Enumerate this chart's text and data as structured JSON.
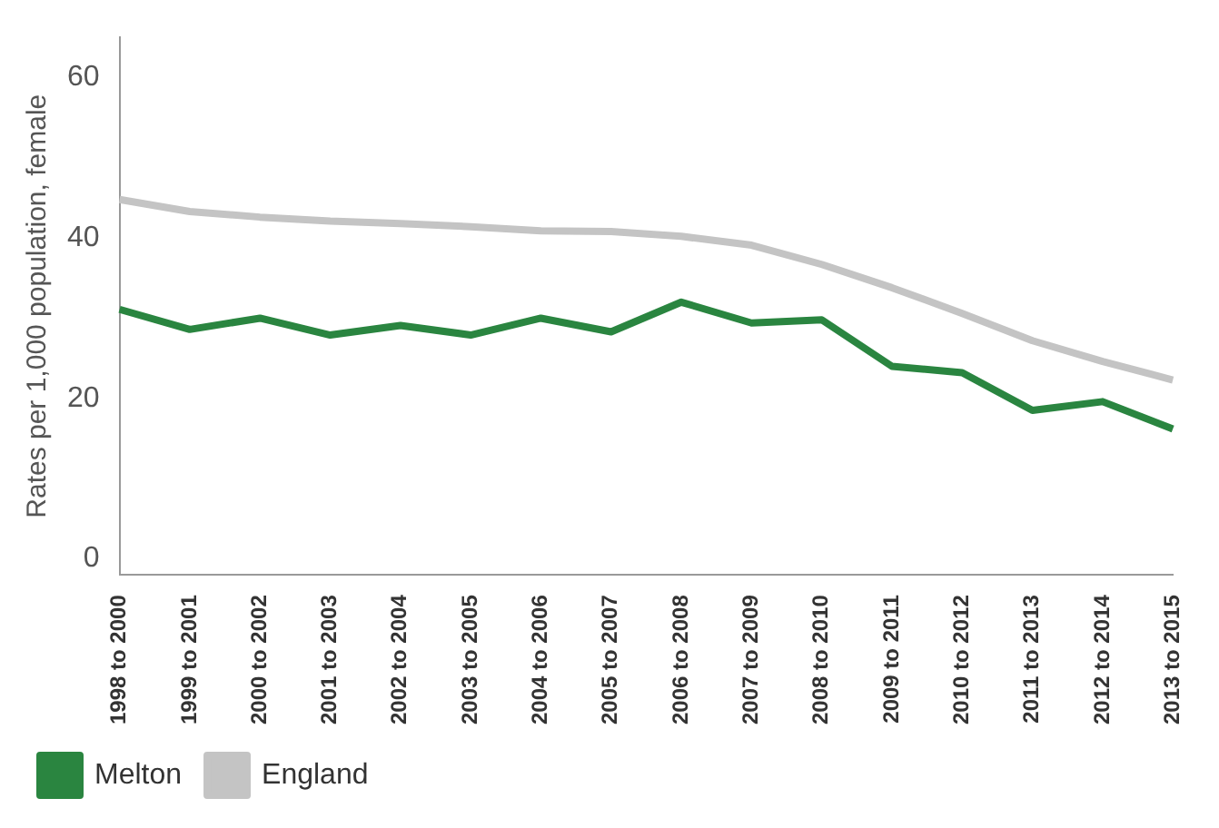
{
  "chart_data": {
    "type": "line",
    "ylabel": "Rates per 1,000 population, female",
    "categories": [
      "1998 to 2000",
      "1999 to 2001",
      "2000 to 2002",
      "2001 to 2003",
      "2002 to 2004",
      "2003 to 2005",
      "2004 to 2006",
      "2005 to 2007",
      "2006 to 2008",
      "2007 to 2009",
      "2008 to 2010",
      "2009 to 2011",
      "2010 to 2012",
      "2011 to 2013",
      "2012 to 2014",
      "2013 to 2015"
    ],
    "series": [
      {
        "name": "Melton",
        "color": "#2a8540",
        "values": [
          31.1,
          28.6,
          30,
          27.9,
          29.1,
          27.9,
          30,
          28.3,
          32,
          29.4,
          29.8,
          24,
          23.2,
          18.5,
          19.6,
          16.2
        ]
      },
      {
        "name": "England",
        "color": "#c4c4c4",
        "values": [
          44.8,
          43.3,
          42.6,
          42.1,
          41.8,
          41.4,
          40.9,
          40.8,
          40.2,
          39.1,
          36.7,
          33.8,
          30.6,
          27.2,
          24.6,
          22.3
        ]
      }
    ],
    "ylim": [
      -2,
      65
    ],
    "yticks": [
      0,
      20,
      40,
      60
    ],
    "grid": false,
    "legend": "bottom left",
    "marker": "none",
    "line_style": "solid"
  }
}
